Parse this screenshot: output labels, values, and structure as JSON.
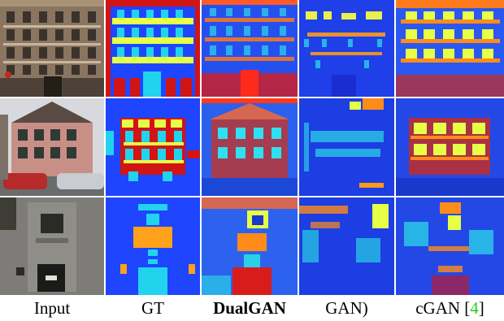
{
  "figure": {
    "captions": {
      "input": "Input",
      "gt": "GT",
      "dualgan": "DualGAN",
      "gan": "GAN)",
      "cgan_prefix": "cGAN [",
      "cgan_ref": "4",
      "cgan_suffix": "]"
    },
    "rows": [
      {
        "scene": "tall-apartment-facade"
      },
      {
        "scene": "pink-house-with-cars"
      },
      {
        "scene": "stone-portal-building"
      }
    ],
    "colors": {
      "label_blue": "#1f45ff",
      "label_cyan": "#22d3ee",
      "label_yellow": "#e6ff47",
      "label_orange": "#ffa11a",
      "label_red": "#d11414",
      "citation_green": "#22cc22"
    }
  }
}
